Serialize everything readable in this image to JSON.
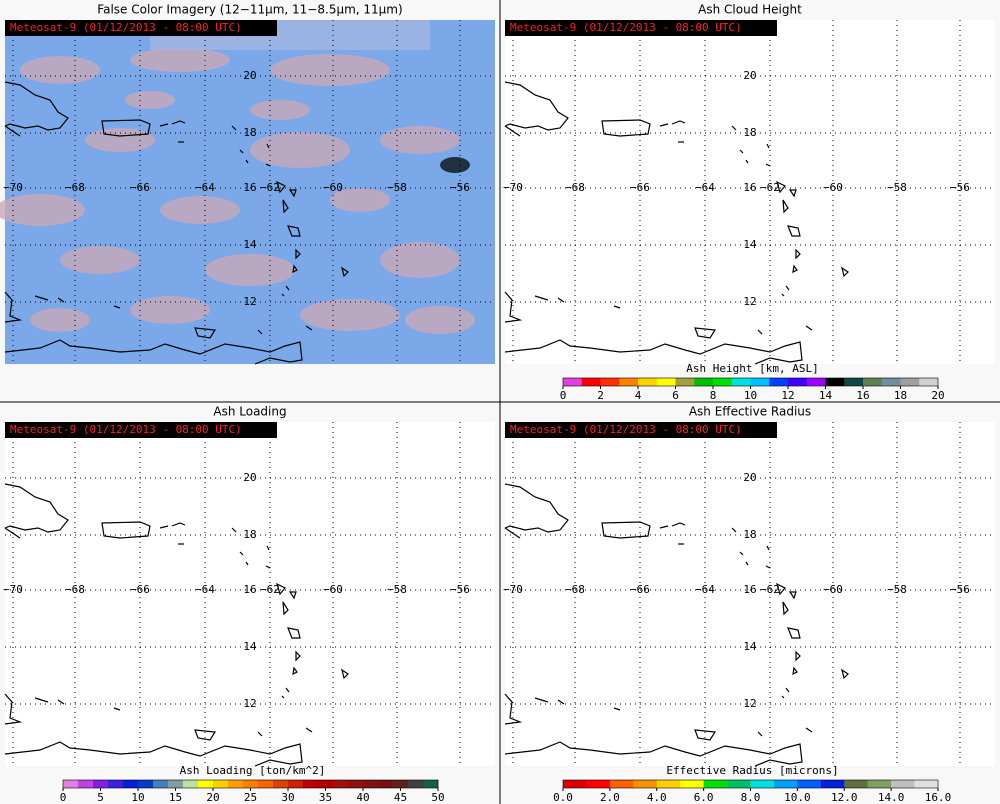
{
  "panels": [
    {
      "title": "False Color Imagery (12−11µm, 11−8.5µm, 11µm)",
      "timestamp": "Meteosat-9  (01/12/2013 - 08:00 UTC)",
      "latitude_labels": [
        "20",
        "18",
        "16",
        "14",
        "12"
      ],
      "longitude_labels": [
        "−70",
        "−68",
        "−66",
        "−64",
        "−62",
        "−60",
        "−58",
        "−56"
      ]
    },
    {
      "title": "Ash Cloud Height",
      "timestamp": "Meteosat-9  (01/12/2013 - 08:00 UTC)",
      "latitude_labels": [
        "20",
        "18",
        "16",
        "14",
        "12"
      ],
      "longitude_labels": [
        "−70",
        "−68",
        "−66",
        "−64",
        "−62",
        "−60",
        "−58",
        "−56"
      ],
      "colorbar": {
        "label": "Ash Height [km, ASL]",
        "ticks": [
          "0",
          "2",
          "4",
          "6",
          "8",
          "10",
          "12",
          "14",
          "16",
          "18",
          "20"
        ],
        "colors": [
          "#e040e0",
          "#ff0000",
          "#ff3000",
          "#ff8000",
          "#ffd000",
          "#ffff00",
          "#a0a040",
          "#00c000",
          "#00e000",
          "#00e0e0",
          "#00c0ff",
          "#0040ff",
          "#4000ff",
          "#a000ff",
          "#000000",
          "#104848",
          "#608050",
          "#7090a0",
          "#a0a0a0",
          "#d0d0d0"
        ]
      }
    },
    {
      "title": "Ash Loading",
      "timestamp": "Meteosat-9  (01/12/2013 - 08:00 UTC)",
      "latitude_labels": [
        "20",
        "18",
        "16",
        "14",
        "12"
      ],
      "longitude_labels": [
        "−70",
        "−68",
        "−66",
        "−64",
        "−62",
        "−60",
        "−58",
        "−56"
      ],
      "colorbar": {
        "label": "Ash Loading [ton/km^2]",
        "ticks": [
          "0",
          "5",
          "10",
          "15",
          "20",
          "25",
          "30",
          "35",
          "40",
          "45",
          "50"
        ],
        "colors": [
          "#e080e0",
          "#c040e0",
          "#8020e0",
          "#4020e0",
          "#0020e0",
          "#0040c0",
          "#4080c0",
          "#80a0a0",
          "#c0e0a0",
          "#ffff00",
          "#ffd000",
          "#ffa000",
          "#ff8000",
          "#ff6000",
          "#e04000",
          "#d02000",
          "#c00000",
          "#b00000",
          "#a01010",
          "#901010",
          "#801010",
          "#701010",
          "#602020",
          "#404040",
          "#106050"
        ]
      }
    },
    {
      "title": "Ash Effective Radius",
      "timestamp": "Meteosat-9  (01/12/2013 - 08:00 UTC)",
      "latitude_labels": [
        "20",
        "18",
        "16",
        "14",
        "12"
      ],
      "longitude_labels": [
        "−70",
        "−68",
        "−66",
        "−64",
        "−62",
        "−60",
        "−58",
        "−56"
      ],
      "colorbar": {
        "label": "Effective Radius [microns]",
        "ticks": [
          "0.0",
          "2.0",
          "4.0",
          "6.0",
          "8.0",
          "10.0",
          "12.0",
          "14.0",
          "16.0"
        ],
        "colors": [
          "#e00000",
          "#ff0000",
          "#ff6000",
          "#ff9000",
          "#ffd000",
          "#ffff00",
          "#00e000",
          "#00c060",
          "#00e0e0",
          "#00a0ff",
          "#0060ff",
          "#0020e0",
          "#607040",
          "#80a060",
          "#c0c0c0",
          "#e0e0e0"
        ]
      }
    }
  ]
}
